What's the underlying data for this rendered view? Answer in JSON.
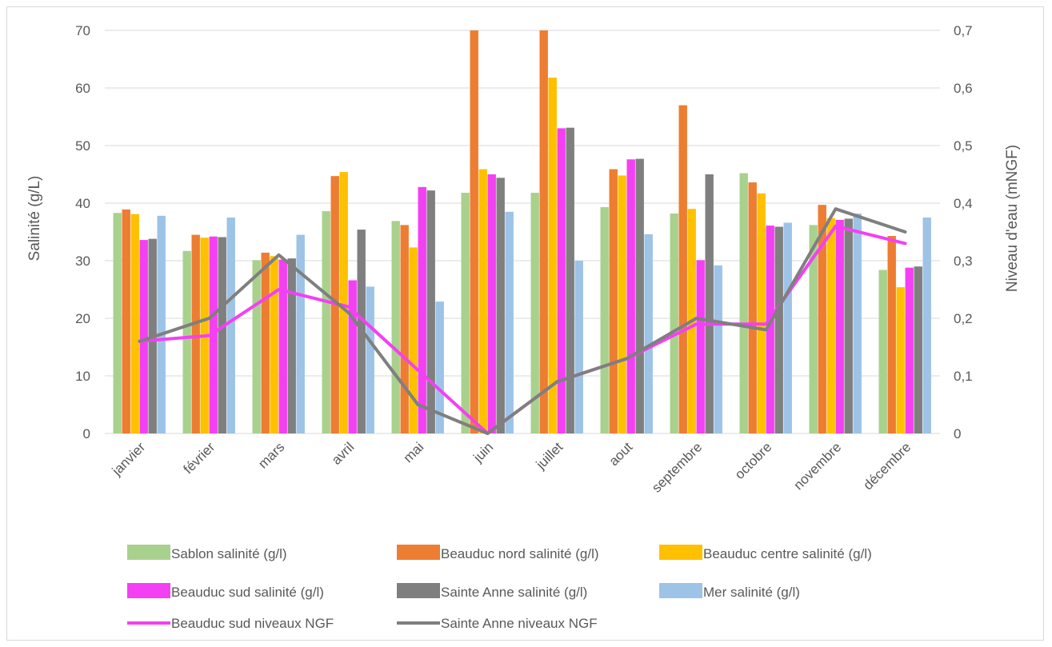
{
  "chart_data": {
    "type": "bar",
    "categories": [
      "janvier",
      "février",
      "mars",
      "avril",
      "mai",
      "juin",
      "juillet",
      "aout",
      "septembre",
      "octobre",
      "novembre",
      "décembre"
    ],
    "ylabel": "Salinité (g/L)",
    "y2label": "Niveau d'eau (mNGF)",
    "ylim": [
      0,
      70
    ],
    "y2lim": [
      0,
      0.7
    ],
    "yticks": [
      "0",
      "10",
      "20",
      "30",
      "40",
      "50",
      "60",
      "70"
    ],
    "y2ticks": [
      "0",
      "0,1",
      "0,2",
      "0,3",
      "0,4",
      "0,5",
      "0,6",
      "0,7"
    ],
    "grid": true,
    "legend_position": "bottom",
    "series": [
      {
        "name": "Sablon salinité (g/l)",
        "kind": "bar",
        "axis": "left",
        "color": "#a9d18e",
        "values": [
          38.3,
          31.7,
          30.1,
          38.6,
          36.9,
          41.8,
          41.8,
          39.3,
          38.2,
          45.2,
          36.2,
          28.4
        ]
      },
      {
        "name": "Beauduc nord salinité (g/l)",
        "kind": "bar",
        "axis": "left",
        "color": "#ed7d31",
        "values": [
          38.9,
          34.5,
          31.4,
          44.7,
          36.2,
          70,
          70,
          45.9,
          57.0,
          43.6,
          39.7,
          34.3
        ]
      },
      {
        "name": "Beauduc centre salinité (g/l)",
        "kind": "bar",
        "axis": "left",
        "color": "#ffc000",
        "values": [
          38.1,
          34.0,
          30.8,
          45.4,
          32.3,
          45.9,
          61.8,
          44.8,
          39.0,
          41.7,
          37.4,
          25.4
        ]
      },
      {
        "name": "Beauduc sud salinité (g/l)",
        "kind": "bar",
        "axis": "left",
        "color": "#f340f3",
        "values": [
          33.6,
          34.2,
          30.2,
          26.6,
          42.8,
          45.0,
          53.0,
          47.6,
          30.1,
          36.1,
          37.1,
          28.8
        ]
      },
      {
        "name": "Sainte Anne salinité (g/l)",
        "kind": "bar",
        "axis": "left",
        "color": "#7f7f7f",
        "values": [
          33.8,
          34.1,
          30.4,
          35.4,
          42.2,
          44.4,
          53.1,
          47.7,
          45.0,
          35.9,
          37.3,
          29.0
        ]
      },
      {
        "name": "Mer salinité (g/l)",
        "kind": "bar",
        "axis": "left",
        "color": "#9dc3e6",
        "values": [
          37.8,
          37.5,
          34.5,
          25.5,
          22.9,
          38.5,
          30.0,
          34.6,
          29.2,
          36.6,
          38.2,
          37.5
        ]
      },
      {
        "name": "Beauduc sud niveaux NGF",
        "kind": "line",
        "axis": "right",
        "color": "#f340f3",
        "values": [
          0.16,
          0.17,
          0.25,
          0.22,
          0.11,
          0.0,
          0.09,
          0.13,
          0.19,
          0.19,
          0.36,
          0.33
        ]
      },
      {
        "name": "Sainte Anne niveaux NGF",
        "kind": "line",
        "axis": "right",
        "color": "#7f7f7f",
        "values": [
          0.16,
          0.2,
          0.31,
          0.21,
          0.05,
          0.0,
          0.09,
          0.13,
          0.2,
          0.18,
          0.39,
          0.35
        ]
      }
    ]
  }
}
